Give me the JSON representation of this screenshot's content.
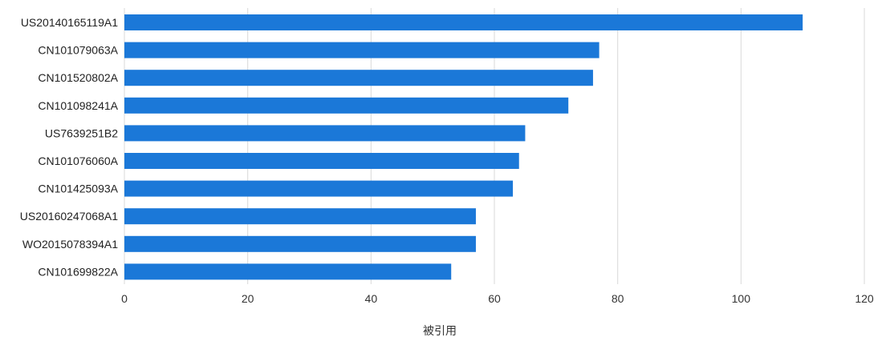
{
  "chart_data": {
    "type": "bar",
    "orientation": "horizontal",
    "categories": [
      "US20140165119A1",
      "CN101079063A",
      "CN101520802A",
      "CN101098241A",
      "US7639251B2",
      "CN101076060A",
      "CN101425093A",
      "US20160247068A1",
      "WO2015078394A1",
      "CN101699822A"
    ],
    "values": [
      110,
      77,
      76,
      72,
      65,
      64,
      63,
      57,
      57,
      53
    ],
    "xlabel": "被引用",
    "ylabel": "",
    "xlim": [
      0,
      120
    ],
    "xticks": [
      0,
      20,
      40,
      60,
      80,
      100,
      120
    ],
    "grid": true,
    "bar_color": "#1b78d8",
    "grid_color": "#d9d9d9"
  }
}
